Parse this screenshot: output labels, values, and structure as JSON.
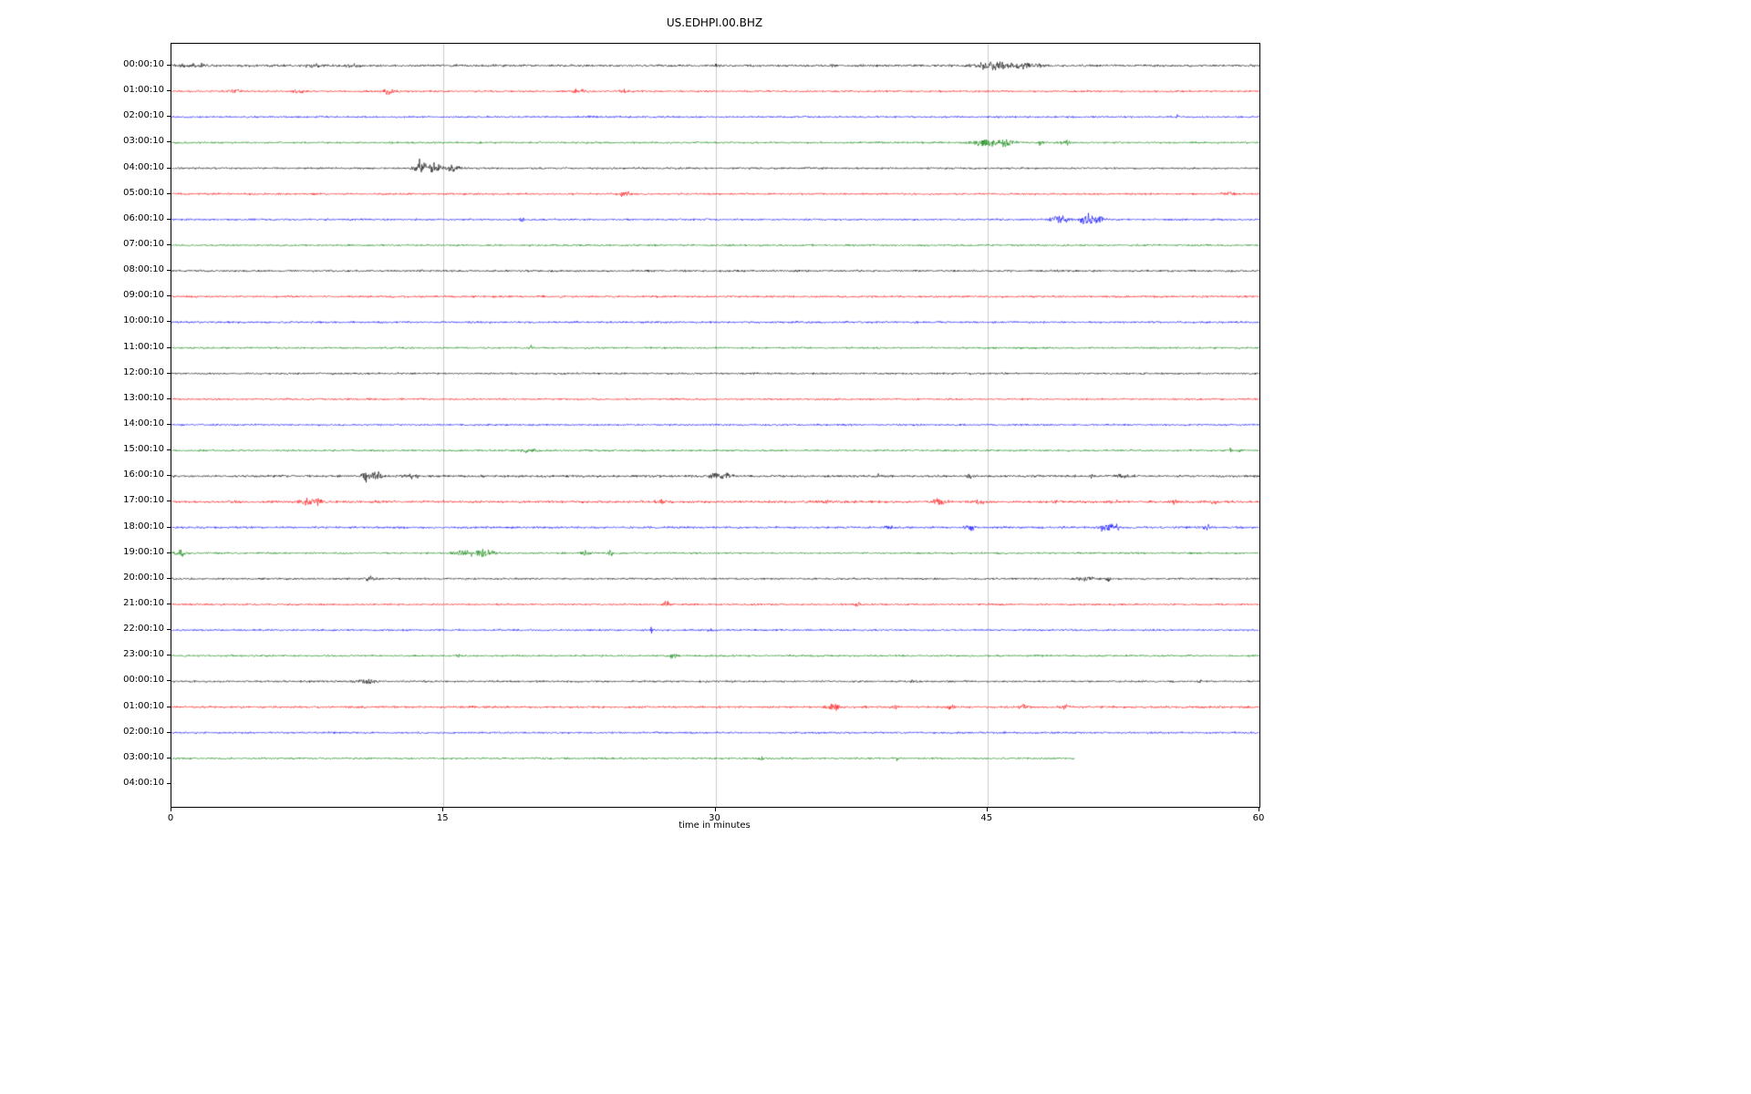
{
  "style": {
    "background": "#ffffff",
    "grid_color": "#cccccc",
    "axis_color": "#000000",
    "trace_colors": {
      "black": "#000000",
      "red": "#ff0000",
      "blue": "#0000ff",
      "green": "#008000"
    }
  },
  "chart_data": {
    "type": "line",
    "subtype": "helicorder-seismogram",
    "title": "US.EDHPI.00.BHZ",
    "xlabel": "time in minutes",
    "xlim": [
      0,
      60
    ],
    "x_ticks": [
      0,
      15,
      30,
      45,
      60
    ],
    "gridlines_x": [
      15,
      30,
      45
    ],
    "grid": true,
    "legend": false,
    "base_amplitude": 1.4,
    "minutes_per_row": 60,
    "rows": [
      {
        "label": "00:00:10",
        "color": "black",
        "amp": 1.7,
        "events": [
          {
            "t": 1.2,
            "a": 3,
            "w": 0.8
          },
          {
            "t": 8,
            "a": 2.5,
            "w": 0.5
          },
          {
            "t": 10,
            "a": 2,
            "w": 0.4
          },
          {
            "t": 30,
            "a": 6,
            "w": 0.05
          },
          {
            "t": 36.5,
            "a": 2,
            "w": 0.2
          },
          {
            "t": 45.5,
            "a": 5,
            "w": 1.2
          },
          {
            "t": 47.3,
            "a": 5,
            "w": 0.6
          }
        ]
      },
      {
        "label": "01:00:10",
        "color": "red",
        "events": [
          {
            "t": 3.5,
            "a": 2.5,
            "w": 0.3
          },
          {
            "t": 7,
            "a": 4,
            "w": 0.25
          },
          {
            "t": 12,
            "a": 5,
            "w": 0.3
          },
          {
            "t": 22.5,
            "a": 2.5,
            "w": 0.4
          },
          {
            "t": 25,
            "a": 1.5,
            "w": 0.3
          }
        ]
      },
      {
        "label": "02:00:10",
        "color": "blue",
        "events": [
          {
            "t": 23,
            "a": 1.5,
            "w": 0.2
          },
          {
            "t": 55.5,
            "a": 3,
            "w": 0.08
          }
        ]
      },
      {
        "label": "03:00:10",
        "color": "green",
        "events": [
          {
            "t": 44.8,
            "a": 5,
            "w": 0.8
          },
          {
            "t": 46,
            "a": 5,
            "w": 0.5
          },
          {
            "t": 48,
            "a": 6,
            "w": 0.15
          },
          {
            "t": 49.3,
            "a": 4,
            "w": 0.3
          }
        ]
      },
      {
        "label": "04:00:10",
        "color": "black",
        "events": [
          {
            "t": 13.7,
            "a": 9,
            "w": 0.3
          },
          {
            "t": 14.5,
            "a": 6,
            "w": 0.5
          },
          {
            "t": 15.5,
            "a": 4,
            "w": 0.4
          }
        ]
      },
      {
        "label": "05:00:10",
        "color": "red",
        "events": [
          {
            "t": 25,
            "a": 4,
            "w": 0.3
          },
          {
            "t": 58.3,
            "a": 2.5,
            "w": 0.3
          }
        ]
      },
      {
        "label": "06:00:10",
        "color": "blue",
        "events": [
          {
            "t": 19.3,
            "a": 5,
            "w": 0.1
          },
          {
            "t": 49,
            "a": 5,
            "w": 0.5
          },
          {
            "t": 50.5,
            "a": 8,
            "w": 0.4
          },
          {
            "t": 51.2,
            "a": 5,
            "w": 0.3
          }
        ]
      },
      {
        "label": "07:00:10",
        "color": "green",
        "events": []
      },
      {
        "label": "08:00:10",
        "color": "black",
        "amp": 1.5,
        "events": []
      },
      {
        "label": "09:00:10",
        "color": "red",
        "amp": 1.5,
        "events": []
      },
      {
        "label": "10:00:10",
        "color": "blue",
        "amp": 1.5,
        "events": []
      },
      {
        "label": "11:00:10",
        "color": "green",
        "events": [
          {
            "t": 19.8,
            "a": 4,
            "w": 0.06
          }
        ]
      },
      {
        "label": "12:00:10",
        "color": "black",
        "events": [
          {
            "t": 9,
            "a": 2,
            "w": 0.1
          }
        ]
      },
      {
        "label": "13:00:10",
        "color": "red",
        "events": []
      },
      {
        "label": "14:00:10",
        "color": "blue",
        "events": []
      },
      {
        "label": "15:00:10",
        "color": "green",
        "events": [
          {
            "t": 19.8,
            "a": 3,
            "w": 0.5
          },
          {
            "t": 58.5,
            "a": 3,
            "w": 0.4
          }
        ]
      },
      {
        "label": "16:00:10",
        "color": "black",
        "amp": 1.7,
        "events": [
          {
            "t": 10.8,
            "a": 10,
            "w": 0.25
          },
          {
            "t": 11.3,
            "a": 6,
            "w": 0.3
          },
          {
            "t": 13.2,
            "a": 3,
            "w": 0.4
          },
          {
            "t": 30.2,
            "a": 4,
            "w": 0.5
          },
          {
            "t": 30.7,
            "a": 4,
            "w": 0.2
          },
          {
            "t": 39,
            "a": 2.5,
            "w": 0.2
          },
          {
            "t": 44,
            "a": 2.5,
            "w": 0.2
          },
          {
            "t": 50.7,
            "a": 4,
            "w": 0.1
          },
          {
            "t": 52.7,
            "a": 3,
            "w": 0.4
          }
        ]
      },
      {
        "label": "17:00:10",
        "color": "red",
        "amp": 1.8,
        "events": [
          {
            "t": 7.5,
            "a": 5,
            "w": 0.4
          },
          {
            "t": 8.1,
            "a": 3,
            "w": 0.3
          },
          {
            "t": 27,
            "a": 2.5,
            "w": 0.3
          },
          {
            "t": 36,
            "a": 2.5,
            "w": 0.3
          },
          {
            "t": 42.3,
            "a": 4,
            "w": 0.4
          },
          {
            "t": 44.5,
            "a": 2.5,
            "w": 0.3
          },
          {
            "t": 48.8,
            "a": 4,
            "w": 0.15
          },
          {
            "t": 52,
            "a": 3,
            "w": 0.2
          },
          {
            "t": 55.3,
            "a": 3,
            "w": 0.2
          },
          {
            "t": 57.5,
            "a": 3.5,
            "w": 0.2
          }
        ]
      },
      {
        "label": "18:00:10",
        "color": "blue",
        "amp": 1.6,
        "events": [
          {
            "t": 39.5,
            "a": 3,
            "w": 0.3
          },
          {
            "t": 44,
            "a": 3,
            "w": 0.3
          },
          {
            "t": 51.5,
            "a": 5,
            "w": 0.4
          },
          {
            "t": 52.1,
            "a": 4,
            "w": 0.2
          },
          {
            "t": 57,
            "a": 4,
            "w": 0.3
          }
        ]
      },
      {
        "label": "19:00:10",
        "color": "green",
        "events": [
          {
            "t": 0.5,
            "a": 4,
            "w": 0.3
          },
          {
            "t": 16.2,
            "a": 4,
            "w": 0.6
          },
          {
            "t": 17,
            "a": 6,
            "w": 0.3
          },
          {
            "t": 17.6,
            "a": 4,
            "w": 0.3
          },
          {
            "t": 22.8,
            "a": 3,
            "w": 0.3
          },
          {
            "t": 24.2,
            "a": 6,
            "w": 0.1
          }
        ]
      },
      {
        "label": "20:00:10",
        "color": "black",
        "events": [
          {
            "t": 11,
            "a": 3,
            "w": 0.3
          },
          {
            "t": 50.5,
            "a": 3,
            "w": 0.5
          },
          {
            "t": 51.7,
            "a": 7,
            "w": 0.08
          }
        ]
      },
      {
        "label": "21:00:10",
        "color": "red",
        "events": [
          {
            "t": 27.3,
            "a": 4,
            "w": 0.2
          },
          {
            "t": 37.8,
            "a": 3,
            "w": 0.2
          }
        ]
      },
      {
        "label": "22:00:10",
        "color": "blue",
        "events": [
          {
            "t": 26.5,
            "a": 5,
            "w": 0.1
          },
          {
            "t": 29.7,
            "a": 3,
            "w": 0.15
          }
        ]
      },
      {
        "label": "23:00:10",
        "color": "green",
        "events": [
          {
            "t": 15.8,
            "a": 2,
            "w": 0.2
          },
          {
            "t": 27.7,
            "a": 3.5,
            "w": 0.2
          }
        ]
      },
      {
        "label": "00:00:10",
        "color": "black",
        "events": [
          {
            "t": 10.8,
            "a": 3,
            "w": 0.5
          },
          {
            "t": 40.8,
            "a": 2,
            "w": 0.2
          },
          {
            "t": 56.7,
            "a": 4,
            "w": 0.08
          }
        ]
      },
      {
        "label": "01:00:10",
        "color": "red",
        "amp": 1.6,
        "events": [
          {
            "t": 36.5,
            "a": 5,
            "w": 0.3
          },
          {
            "t": 40,
            "a": 3,
            "w": 0.2
          },
          {
            "t": 43,
            "a": 4,
            "w": 0.2
          },
          {
            "t": 47,
            "a": 4,
            "w": 0.25
          },
          {
            "t": 49.3,
            "a": 3.5,
            "w": 0.2
          }
        ]
      },
      {
        "label": "02:00:10",
        "color": "blue",
        "events": []
      },
      {
        "label": "03:00:10",
        "color": "green",
        "end": 49.8,
        "events": [
          {
            "t": 32.5,
            "a": 3,
            "w": 0.2
          },
          {
            "t": 40,
            "a": 2.5,
            "w": 0.2
          }
        ]
      },
      {
        "label": "04:00:10",
        "trace": false,
        "events": []
      }
    ]
  }
}
